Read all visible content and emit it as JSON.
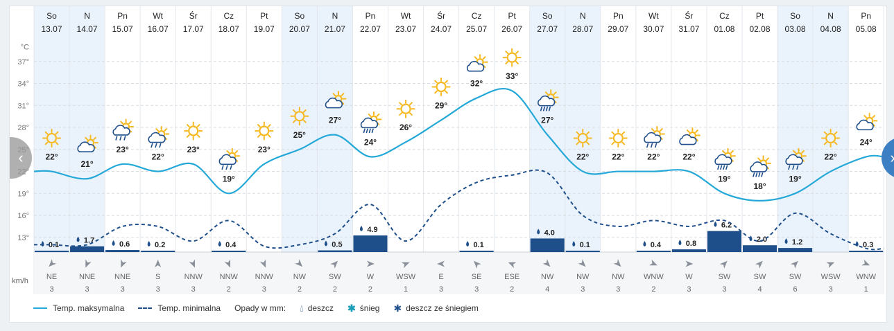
{
  "days": [
    {
      "day": "So",
      "date": "13.07",
      "icon": "sun-icon",
      "max": "22°",
      "precip": "0.1",
      "wind_dir": "NE",
      "wind_speed": "3"
    },
    {
      "day": "N",
      "date": "14.07",
      "icon": "partly-cloudy-icon",
      "max": "21°",
      "precip": "1.7",
      "wind_dir": "NNE",
      "wind_speed": "3"
    },
    {
      "day": "Pn",
      "date": "15.07",
      "icon": "sun-rain-cloud-icon",
      "max": "23°",
      "precip": "0.6",
      "wind_dir": "NNE",
      "wind_speed": "3"
    },
    {
      "day": "Wt",
      "date": "16.07",
      "icon": "sun-rain-cloud-icon",
      "max": "22°",
      "precip": "0.2",
      "wind_dir": "S",
      "wind_speed": "3"
    },
    {
      "day": "Śr",
      "date": "17.07",
      "icon": "sun-icon",
      "max": "23°",
      "precip": "",
      "wind_dir": "NNW",
      "wind_speed": "3"
    },
    {
      "day": "Cz",
      "date": "18.07",
      "icon": "sun-rain-cloud-icon",
      "max": "19°",
      "precip": "0.4",
      "wind_dir": "NNW",
      "wind_speed": "2"
    },
    {
      "day": "Pt",
      "date": "19.07",
      "icon": "sun-icon",
      "max": "23°",
      "precip": "",
      "wind_dir": "NNW",
      "wind_speed": "3"
    },
    {
      "day": "So",
      "date": "20.07",
      "icon": "sun-icon",
      "max": "25°",
      "precip": "",
      "wind_dir": "NW",
      "wind_speed": "2"
    },
    {
      "day": "N",
      "date": "21.07",
      "icon": "partly-cloudy-icon",
      "max": "27°",
      "precip": "0.5",
      "wind_dir": "SW",
      "wind_speed": "2"
    },
    {
      "day": "Pn",
      "date": "22.07",
      "icon": "sun-heavy-rain-icon",
      "max": "24°",
      "precip": "4.9",
      "wind_dir": "W",
      "wind_speed": "2"
    },
    {
      "day": "Wt",
      "date": "23.07",
      "icon": "sun-icon",
      "max": "26°",
      "precip": "",
      "wind_dir": "WSW",
      "wind_speed": "1"
    },
    {
      "day": "Śr",
      "date": "24.07",
      "icon": "sun-icon",
      "max": "29°",
      "precip": "",
      "wind_dir": "E",
      "wind_speed": "3"
    },
    {
      "day": "Cz",
      "date": "25.07",
      "icon": "partly-cloudy-icon",
      "max": "32°",
      "precip": "0.1",
      "wind_dir": "SE",
      "wind_speed": "3"
    },
    {
      "day": "Pt",
      "date": "26.07",
      "icon": "sun-icon",
      "max": "33°",
      "precip": "",
      "wind_dir": "ESE",
      "wind_speed": "2"
    },
    {
      "day": "So",
      "date": "27.07",
      "icon": "sun-heavy-rain-icon",
      "max": "27°",
      "precip": "4.0",
      "wind_dir": "NW",
      "wind_speed": "4"
    },
    {
      "day": "N",
      "date": "28.07",
      "icon": "sun-icon",
      "max": "22°",
      "precip": "0.1",
      "wind_dir": "NW",
      "wind_speed": "3"
    },
    {
      "day": "Pn",
      "date": "29.07",
      "icon": "sun-icon",
      "max": "22°",
      "precip": "",
      "wind_dir": "NW",
      "wind_speed": "3"
    },
    {
      "day": "Wt",
      "date": "30.07",
      "icon": "sun-rain-cloud-icon",
      "max": "22°",
      "precip": "0.4",
      "wind_dir": "WNW",
      "wind_speed": "2"
    },
    {
      "day": "Śr",
      "date": "31.07",
      "icon": "partly-cloudy-icon",
      "max": "22°",
      "precip": "0.8",
      "wind_dir": "W",
      "wind_speed": "3"
    },
    {
      "day": "Cz",
      "date": "01.08",
      "icon": "sun-heavy-rain-icon",
      "max": "19°",
      "precip": "6.2",
      "wind_dir": "SW",
      "wind_speed": "3"
    },
    {
      "day": "Pt",
      "date": "02.08",
      "icon": "sun-heavy-rain-icon",
      "max": "18°",
      "precip": "2.0",
      "wind_dir": "SW",
      "wind_speed": "4"
    },
    {
      "day": "So",
      "date": "03.08",
      "icon": "sun-rain-cloud-icon",
      "max": "19°",
      "precip": "1.2",
      "wind_dir": "SW",
      "wind_speed": "6"
    },
    {
      "day": "N",
      "date": "04.08",
      "icon": "sun-icon",
      "max": "22°",
      "precip": "",
      "wind_dir": "WSW",
      "wind_speed": "3"
    },
    {
      "day": "Pn",
      "date": "05.08",
      "icon": "partly-cloudy-icon",
      "max": "24°",
      "precip": "0.3",
      "wind_dir": "WNW",
      "wind_speed": "1"
    }
  ],
  "weekend_indices": [
    0,
    1,
    7,
    8,
    14,
    15,
    21,
    22
  ],
  "chart_data": {
    "type": "line",
    "categories": [
      "13.07",
      "14.07",
      "15.07",
      "16.07",
      "17.07",
      "18.07",
      "19.07",
      "20.07",
      "21.07",
      "22.07",
      "23.07",
      "24.07",
      "25.07",
      "26.07",
      "27.07",
      "28.07",
      "29.07",
      "30.07",
      "31.07",
      "01.08",
      "02.08",
      "03.08",
      "04.08",
      "05.08"
    ],
    "ylabel": "°C",
    "yticks": [
      13,
      16,
      19,
      22,
      25,
      28,
      31,
      34,
      37
    ],
    "ylim": [
      11,
      40
    ],
    "precip_max": 10,
    "series": [
      {
        "name": "Temp. maksymalna",
        "values": [
          22,
          21,
          23,
          22,
          23,
          19,
          23,
          25,
          27,
          24,
          26,
          29,
          32,
          33,
          27,
          22,
          22,
          22,
          22,
          19,
          18,
          19,
          22,
          24
        ]
      },
      {
        "name": "Temp. minimalna",
        "values": [
          12,
          12,
          14.5,
          14.5,
          12.5,
          15.3,
          11.8,
          12,
          13.5,
          17.5,
          12.5,
          17.5,
          20.5,
          21.5,
          21.8,
          16,
          14.5,
          15.3,
          14.5,
          15.3,
          12.5,
          16.3,
          13.5,
          11.5
        ]
      },
      {
        "name": "Opady",
        "values": [
          0.1,
          1.7,
          0.6,
          0.2,
          0,
          0.4,
          0,
          0,
          0.5,
          4.9,
          0,
          0,
          0.1,
          0,
          4.0,
          0.1,
          0,
          0.4,
          0.8,
          6.2,
          2.0,
          1.2,
          0,
          0.3
        ]
      }
    ],
    "wind_speed_values": [
      3,
      3,
      3,
      3,
      3,
      2,
      3,
      2,
      2,
      2,
      1,
      3,
      3,
      2,
      4,
      3,
      3,
      2,
      3,
      3,
      4,
      6,
      3,
      1
    ],
    "wind_dir_degrees": [
      45,
      22.5,
      22.5,
      180,
      337.5,
      337.5,
      337.5,
      315,
      225,
      270,
      247.5,
      90,
      135,
      112.5,
      315,
      315,
      315,
      292.5,
      270,
      225,
      225,
      225,
      247.5,
      292.5
    ]
  },
  "labels": {
    "wind_unit": "km/h",
    "nav_prev": "‹",
    "nav_next": "›"
  },
  "legend": {
    "max_label": "Temp. maksymalna",
    "min_label": "Temp. minimalna",
    "precip_label": "Opady w mm:",
    "rain_label": "deszcz",
    "snow_label": "śnieg",
    "sleet_label": "deszcz ze śniegiem"
  },
  "colors": {
    "max_line": "#23a8d8",
    "min_line": "#1f4f8a",
    "precip_bar": "#1f4f8a",
    "weekend_bg": "#eaf2fb",
    "sun": "#f5b922",
    "cloud": "#1f4f8a"
  }
}
